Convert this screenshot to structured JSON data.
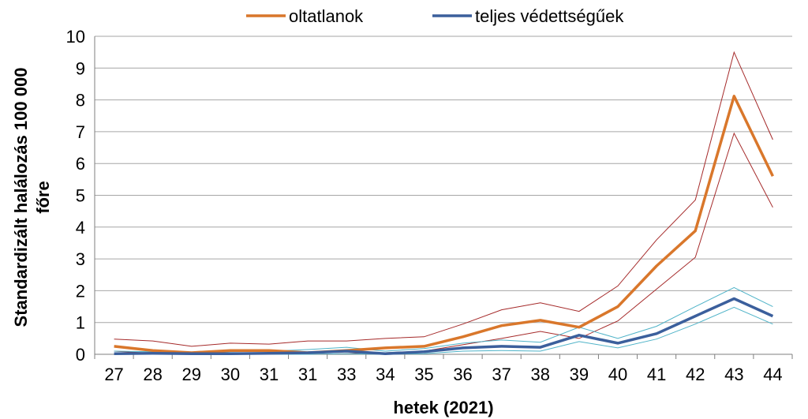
{
  "chart_data": {
    "type": "line",
    "xlabel": "hetek (2021)",
    "ylabel_line1": "Standardizált halálozás 100 000",
    "ylabel_line2": "főre",
    "ylim": [
      0,
      10
    ],
    "yticks": [
      0,
      1,
      2,
      3,
      4,
      5,
      6,
      7,
      8,
      9,
      10
    ],
    "grid": true,
    "legend_position": "top",
    "categories": [
      "27",
      "28",
      "29",
      "30",
      "31",
      "31",
      "33",
      "34",
      "35",
      "36",
      "37",
      "38",
      "39",
      "40",
      "41",
      "42",
      "43",
      "44"
    ],
    "series": [
      {
        "name": "oltatlanok",
        "color": "#d9772b",
        "values": [
          0.25,
          0.12,
          0.05,
          0.12,
          0.12,
          0.05,
          0.12,
          0.2,
          0.25,
          0.55,
          0.9,
          1.07,
          0.85,
          1.5,
          2.78,
          3.88,
          8.12,
          5.6
        ],
        "upper": [
          0.48,
          0.42,
          0.25,
          0.35,
          0.32,
          0.42,
          0.42,
          0.5,
          0.55,
          0.95,
          1.4,
          1.62,
          1.35,
          2.15,
          3.6,
          4.85,
          9.5,
          6.75
        ],
        "lower": [
          0.1,
          0.03,
          0.0,
          0.03,
          0.03,
          0.0,
          0.02,
          0.05,
          0.1,
          0.3,
          0.5,
          0.72,
          0.5,
          1.05,
          2.05,
          3.05,
          6.95,
          4.62
        ],
        "ci_color": "#a52a2a"
      },
      {
        "name": "teljes védettségűek",
        "color": "#3b5f9c",
        "values": [
          0.02,
          0.03,
          0.02,
          0.02,
          0.03,
          0.05,
          0.1,
          0.02,
          0.08,
          0.2,
          0.25,
          0.22,
          0.6,
          0.35,
          0.65,
          1.2,
          1.75,
          1.2
        ],
        "upper": [
          0.1,
          0.08,
          0.05,
          0.08,
          0.1,
          0.15,
          0.22,
          0.1,
          0.18,
          0.35,
          0.45,
          0.38,
          0.85,
          0.5,
          0.88,
          1.5,
          2.1,
          1.5
        ],
        "lower": [
          0.0,
          0.0,
          0.0,
          0.0,
          0.0,
          0.0,
          0.02,
          0.0,
          0.02,
          0.1,
          0.12,
          0.1,
          0.4,
          0.2,
          0.48,
          0.95,
          1.48,
          0.95
        ],
        "ci_color": "#4fb3c8"
      }
    ]
  }
}
